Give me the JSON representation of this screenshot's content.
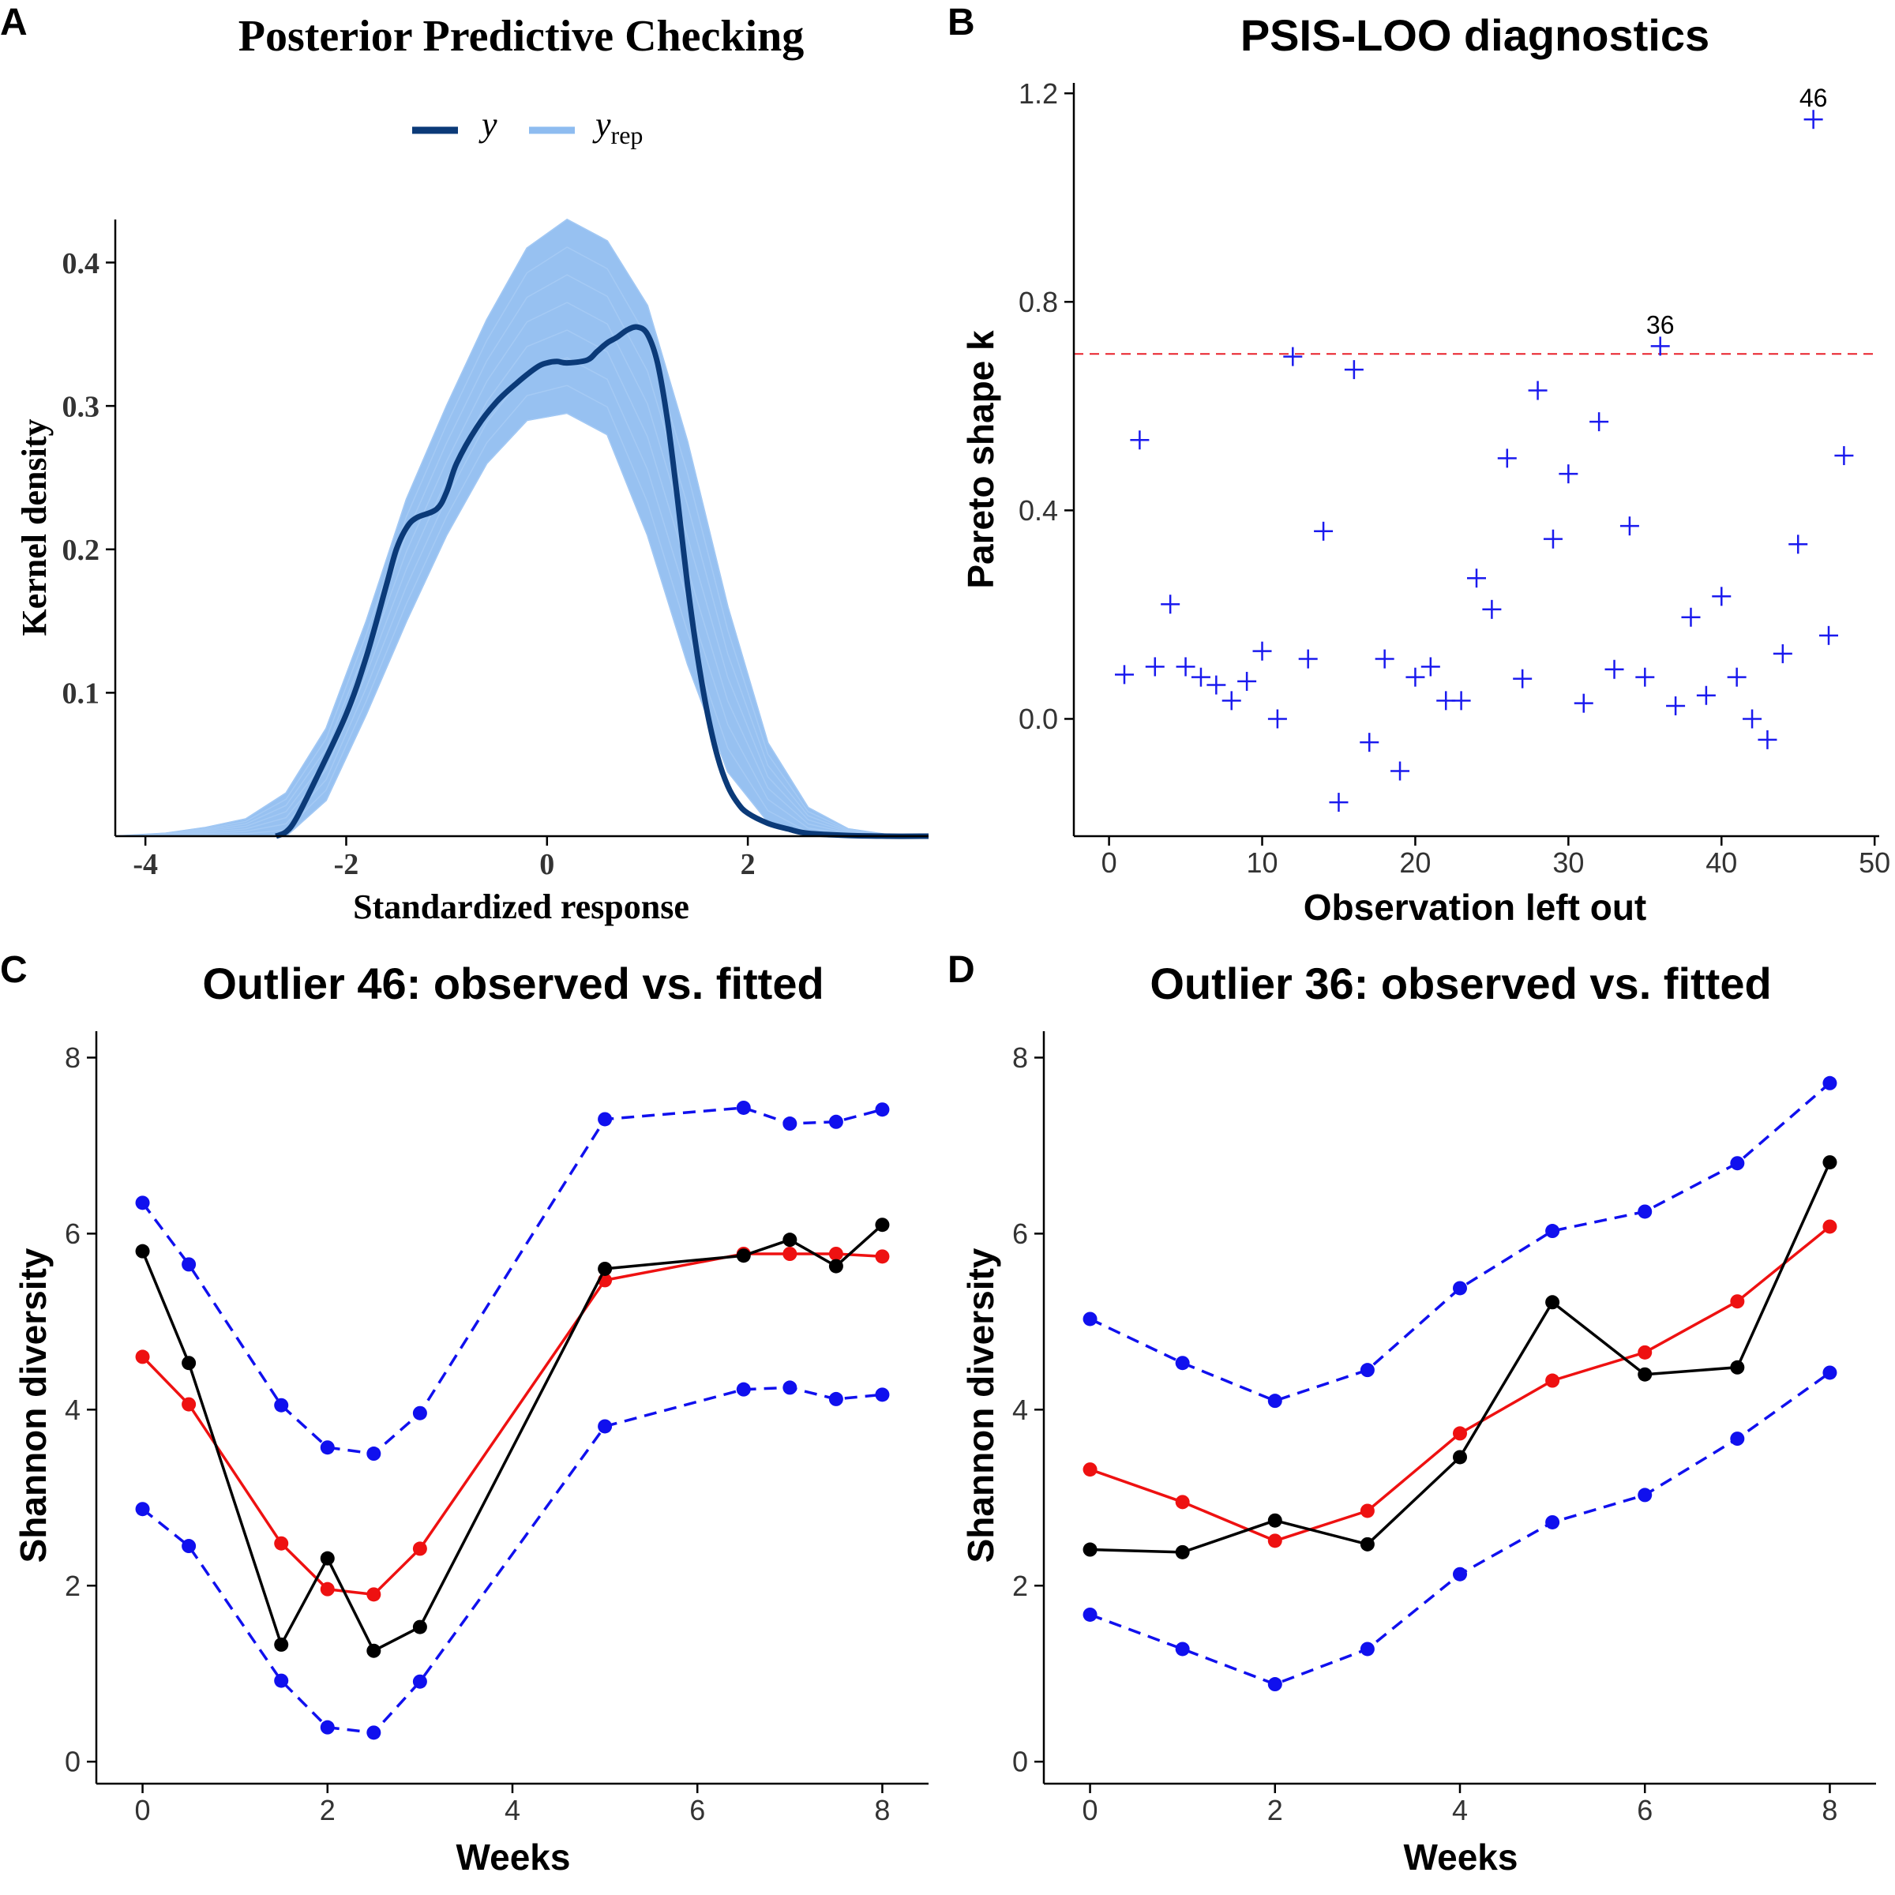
{
  "panel_labels": [
    "A",
    "B",
    "C",
    "D"
  ],
  "chart_data": [
    {
      "panel": "A",
      "type": "line",
      "title": "Posterior Predictive Checking",
      "xlabel": "Standardized response",
      "ylabel": "Kernel density",
      "xlim": [
        -4.3,
        3.8
      ],
      "ylim": [
        0,
        0.43
      ],
      "xticks": [
        -4,
        -2,
        0,
        2
      ],
      "yticks": [
        0.1,
        0.2,
        0.3,
        0.4
      ],
      "legend": {
        "position": "top",
        "entries": [
          {
            "label": "y",
            "color": "#0b3a78"
          },
          {
            "label": "y",
            "subscript": "rep",
            "color": "#8ebcf0"
          }
        ]
      },
      "series": [
        {
          "name": "y",
          "color": "#0b3a78",
          "x": [
            -2.7,
            -2.6,
            -2.5,
            -2.3,
            -2.0,
            -1.8,
            -1.6,
            -1.5,
            -1.4,
            -1.3,
            -1.1,
            -1.0,
            -0.9,
            -0.7,
            -0.5,
            -0.3,
            -0.1,
            0.0,
            0.1,
            0.2,
            0.4,
            0.5,
            0.6,
            0.7,
            0.8,
            0.9,
            1.0,
            1.1,
            1.2,
            1.3,
            1.4,
            1.5,
            1.6,
            1.7,
            1.8,
            1.9,
            2.0,
            2.2,
            2.4,
            2.6,
            3.0,
            3.4,
            3.8
          ],
          "values": [
            0.0,
            0.003,
            0.012,
            0.04,
            0.085,
            0.125,
            0.175,
            0.2,
            0.215,
            0.222,
            0.228,
            0.24,
            0.26,
            0.285,
            0.303,
            0.316,
            0.327,
            0.33,
            0.331,
            0.33,
            0.332,
            0.338,
            0.344,
            0.348,
            0.353,
            0.355,
            0.35,
            0.33,
            0.29,
            0.235,
            0.175,
            0.125,
            0.085,
            0.055,
            0.035,
            0.023,
            0.016,
            0.009,
            0.005,
            0.002,
            0.0005,
            0.0,
            0.0
          ]
        }
      ],
      "yrep_band": {
        "name": "y_rep",
        "color": "#8ebcf0",
        "x": [
          -4.3,
          -3.8,
          -3.4,
          -3.0,
          -2.6,
          -2.2,
          -1.8,
          -1.4,
          -1.0,
          -0.6,
          -0.2,
          0.2,
          0.6,
          1.0,
          1.4,
          1.8,
          2.2,
          2.6,
          3.0,
          3.4,
          3.8
        ],
        "lower": [
          0,
          0,
          0,
          0.0,
          0.0,
          0.025,
          0.085,
          0.15,
          0.21,
          0.26,
          0.29,
          0.295,
          0.28,
          0.21,
          0.12,
          0.045,
          0.01,
          0.0,
          0.0,
          0,
          0
        ],
        "upper": [
          0,
          0.002,
          0.006,
          0.012,
          0.03,
          0.075,
          0.15,
          0.235,
          0.3,
          0.36,
          0.41,
          0.43,
          0.415,
          0.37,
          0.275,
          0.16,
          0.065,
          0.02,
          0.005,
          0.001,
          0
        ]
      }
    },
    {
      "panel": "B",
      "type": "scatter",
      "title": "PSIS-LOO diagnostics",
      "xlabel": "Observation left out",
      "ylabel": "Pareto shape k",
      "xlim": [
        -2.3,
        50.3
      ],
      "ylim": [
        -0.225,
        1.22
      ],
      "xticks": [
        0,
        10,
        20,
        30,
        40,
        50
      ],
      "yticks": [
        0.0,
        0.4,
        0.8,
        1.2
      ],
      "ytick_labels": [
        "0.0",
        "0.4",
        "0.8",
        "1.2"
      ],
      "threshold": 0.7,
      "threshold_color": "#e8212a",
      "point_color": "#1a1aee",
      "x": [
        1,
        2,
        3,
        4,
        5,
        6,
        7,
        8,
        9,
        10,
        11,
        12,
        13,
        14,
        15,
        16,
        17,
        18,
        19,
        20,
        21,
        22,
        23,
        24,
        25,
        26,
        27,
        28,
        29,
        30,
        31,
        32,
        33,
        34,
        35,
        36,
        37,
        38,
        39,
        40,
        41,
        42,
        43,
        44,
        45,
        46,
        47,
        48
      ],
      "values": [
        0.085,
        0.535,
        0.1,
        0.22,
        0.1,
        0.08,
        0.065,
        0.035,
        0.072,
        0.13,
        0.0,
        0.695,
        0.115,
        0.36,
        -0.16,
        0.67,
        -0.045,
        0.115,
        -0.1,
        0.08,
        0.1,
        0.035,
        0.035,
        0.27,
        0.21,
        0.5,
        0.077,
        0.63,
        0.345,
        0.47,
        0.03,
        0.57,
        0.095,
        0.37,
        0.08,
        0.715,
        0.025,
        0.195,
        0.045,
        0.235,
        0.08,
        0.0,
        -0.04,
        0.125,
        0.335,
        1.15,
        0.16,
        0.505
      ],
      "annotations": [
        {
          "label": "46",
          "x": 46,
          "y": 1.15
        },
        {
          "label": "36",
          "x": 36,
          "y": 0.715
        }
      ]
    },
    {
      "panel": "C",
      "type": "line",
      "title": "Outlier 46: observed vs. fitted",
      "xlabel": "Weeks",
      "ylabel": "Shannon diversity",
      "xlim": [
        -0.5,
        8.5
      ],
      "ylim": [
        -0.25,
        8.3
      ],
      "xticks": [
        0,
        2,
        4,
        6,
        8
      ],
      "yticks": [
        0,
        2,
        4,
        6,
        8
      ],
      "x": [
        0,
        0.5,
        1.5,
        2,
        2.5,
        3,
        5,
        6.5,
        7,
        7.5,
        8
      ],
      "series": [
        {
          "name": "upper",
          "color": "#1010ee",
          "dashed": true,
          "values": [
            6.35,
            5.65,
            4.05,
            3.57,
            3.5,
            3.96,
            7.3,
            7.43,
            7.25,
            7.27,
            7.41
          ]
        },
        {
          "name": "lower",
          "color": "#1010ee",
          "dashed": true,
          "values": [
            2.87,
            2.45,
            0.92,
            0.39,
            0.33,
            0.91,
            3.81,
            4.23,
            4.25,
            4.12,
            4.17
          ]
        },
        {
          "name": "fitted",
          "color": "#ee1111",
          "dashed": false,
          "values": [
            4.6,
            4.06,
            2.48,
            1.96,
            1.9,
            2.42,
            5.47,
            5.77,
            5.77,
            5.77,
            5.74
          ]
        },
        {
          "name": "observed",
          "color": "#000000",
          "dashed": false,
          "values": [
            5.8,
            4.53,
            1.33,
            2.31,
            1.26,
            1.53,
            5.6,
            5.75,
            5.93,
            5.63,
            6.1
          ]
        }
      ]
    },
    {
      "panel": "D",
      "type": "line",
      "title": "Outlier 36: observed vs. fitted",
      "xlabel": "Weeks",
      "ylabel": "Shannon diversity",
      "xlim": [
        -0.5,
        8.5
      ],
      "ylim": [
        -0.25,
        8.3
      ],
      "xticks": [
        0,
        2,
        4,
        6,
        8
      ],
      "yticks": [
        0,
        2,
        4,
        6,
        8
      ],
      "x": [
        0,
        1,
        2,
        3,
        4,
        5,
        6,
        7,
        8
      ],
      "series": [
        {
          "name": "upper",
          "color": "#1010ee",
          "dashed": true,
          "values": [
            5.03,
            4.53,
            4.1,
            4.45,
            5.38,
            6.03,
            6.25,
            6.8,
            7.71
          ]
        },
        {
          "name": "lower",
          "color": "#1010ee",
          "dashed": true,
          "values": [
            1.67,
            1.28,
            0.88,
            1.28,
            2.13,
            2.72,
            3.03,
            3.67,
            4.42
          ]
        },
        {
          "name": "fitted",
          "color": "#ee1111",
          "dashed": false,
          "values": [
            3.32,
            2.95,
            2.51,
            2.85,
            3.73,
            4.33,
            4.65,
            5.23,
            6.08
          ]
        },
        {
          "name": "observed",
          "color": "#000000",
          "dashed": false,
          "values": [
            2.41,
            2.38,
            2.74,
            2.47,
            3.46,
            5.22,
            4.4,
            4.48,
            6.81
          ]
        }
      ]
    }
  ]
}
